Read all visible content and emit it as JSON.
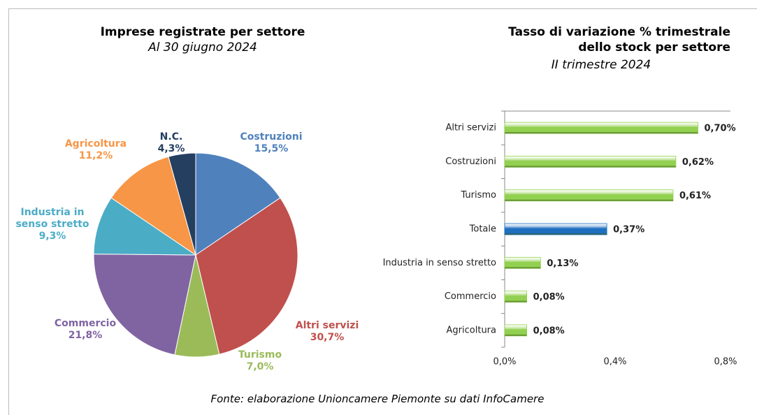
{
  "chart_data": [
    {
      "type": "pie",
      "title": "Imprese registrate per settore",
      "subtitle": "Al 30 giugno 2024",
      "categories": [
        "Costruzioni",
        "Altri servizi",
        "Turismo",
        "Commercio",
        "Industria in senso stretto",
        "Agricoltura",
        "N.C."
      ],
      "values": [
        15.5,
        30.7,
        7.0,
        21.8,
        9.3,
        11.2,
        4.3
      ],
      "value_labels": [
        "15,5%",
        "30,7%",
        "7,0%",
        "21,8%",
        "9,3%",
        "11,2%",
        "4,3%"
      ],
      "colors": [
        "#4f81bd",
        "#c0504d",
        "#9bbb59",
        "#8064a2",
        "#4bacc6",
        "#f79646",
        "#243f60"
      ]
    },
    {
      "type": "hbar",
      "title": [
        "Tasso di variazione % trimestrale",
        "dello stock per settore"
      ],
      "subtitle": "II trimestre 2024",
      "categories": [
        "Altri servizi",
        "Costruzioni",
        "Turismo",
        "Totale",
        "Industria in senso stretto",
        "Commercio",
        "Agricoltura"
      ],
      "values": [
        0.7,
        0.62,
        0.61,
        0.37,
        0.13,
        0.08,
        0.08
      ],
      "value_labels": [
        "0,70%",
        "0,62%",
        "0,61%",
        "0,37%",
        "0,13%",
        "0,08%",
        "0,08%"
      ],
      "colors": [
        "#92d050",
        "#92d050",
        "#92d050",
        "#1f6fbf",
        "#92d050",
        "#92d050",
        "#92d050"
      ],
      "xlim": [
        0,
        0.8
      ],
      "xticks": [
        {
          "value": 0,
          "label": "0,0%"
        },
        {
          "value": 0.4,
          "label": "0,4%"
        },
        {
          "value": 0.8,
          "label": "0,8%"
        }
      ]
    }
  ],
  "source": "Fonte: elaborazione Unioncamere Piemonte su dati InfoCamere"
}
